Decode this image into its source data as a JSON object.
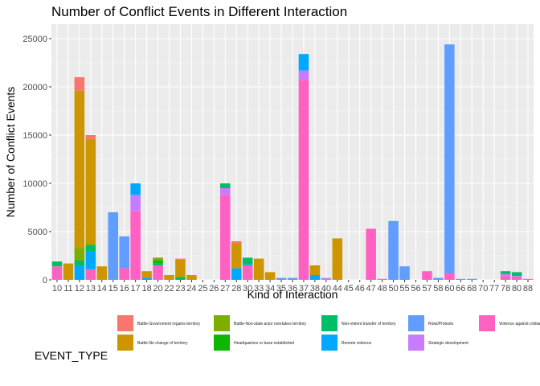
{
  "chart_data": {
    "type": "bar",
    "stacked": true,
    "title": "Number of Conflict Events in Different Interaction",
    "xlabel": "Kind of Interaction",
    "ylabel": "Number of Conflict Events",
    "ylim": [
      0,
      26500
    ],
    "yticks": [
      0,
      5000,
      10000,
      15000,
      20000,
      25000
    ],
    "y_tick_labels": [
      "0",
      "5000",
      "10000",
      "15000",
      "20000",
      "25000"
    ],
    "grid": true,
    "legend_title": "EVENT_TYPE",
    "legend_position": "bottom",
    "categories": [
      "10",
      "11",
      "12",
      "13",
      "14",
      "15",
      "16",
      "17",
      "18",
      "20",
      "22",
      "23",
      "24",
      "25",
      "26",
      "27",
      "28",
      "30",
      "33",
      "34",
      "35",
      "36",
      "37",
      "38",
      "40",
      "44",
      "45",
      "46",
      "47",
      "48",
      "50",
      "55",
      "56",
      "57",
      "58",
      "60",
      "66",
      "68",
      "70",
      "77",
      "78",
      "80",
      "88"
    ],
    "series": [
      {
        "name": "Battle-Government regains territory",
        "color": "#F8766D",
        "values": [
          0,
          0,
          1400,
          400,
          0,
          0,
          0,
          0,
          0,
          0,
          0,
          100,
          0,
          0,
          0,
          0,
          200,
          0,
          0,
          0,
          0,
          0,
          0,
          0,
          0,
          0,
          0,
          0,
          0,
          0,
          0,
          0,
          0,
          0,
          0,
          0,
          0,
          0,
          0,
          0,
          0,
          0,
          0
        ]
      },
      {
        "name": "Battle-No change of territory",
        "color": "#CD9600",
        "values": [
          0,
          1700,
          16300,
          10800,
          1400,
          0,
          0,
          0,
          700,
          0,
          500,
          1800,
          500,
          0,
          0,
          0,
          2600,
          0,
          2200,
          800,
          0,
          0,
          0,
          1000,
          0,
          4300,
          0,
          0,
          0,
          0,
          0,
          0,
          0,
          0,
          0,
          0,
          0,
          0,
          0,
          0,
          0,
          0,
          0
        ]
      },
      {
        "name": "Battle-Non-state actor overtakes territory",
        "color": "#7CAE00",
        "values": [
          0,
          0,
          1300,
          200,
          0,
          0,
          0,
          0,
          0,
          300,
          0,
          0,
          0,
          0,
          0,
          0,
          0,
          0,
          0,
          0,
          0,
          0,
          0,
          0,
          0,
          0,
          0,
          0,
          0,
          0,
          0,
          0,
          0,
          0,
          0,
          0,
          0,
          0,
          0,
          0,
          0,
          0,
          0
        ]
      },
      {
        "name": "Headquarters or base established",
        "color": "#0CB702",
        "values": [
          0,
          0,
          0,
          0,
          0,
          0,
          0,
          0,
          0,
          300,
          0,
          0,
          0,
          0,
          0,
          0,
          0,
          0,
          0,
          0,
          0,
          0,
          0,
          0,
          0,
          0,
          0,
          0,
          0,
          0,
          0,
          0,
          0,
          0,
          0,
          0,
          0,
          0,
          0,
          0,
          0,
          0,
          0
        ]
      },
      {
        "name": "Non-violent transfer of territory",
        "color": "#00BE67",
        "values": [
          500,
          0,
          500,
          600,
          0,
          0,
          0,
          0,
          0,
          200,
          0,
          300,
          0,
          0,
          0,
          500,
          0,
          700,
          0,
          0,
          0,
          0,
          0,
          0,
          0,
          0,
          0,
          0,
          0,
          0,
          0,
          0,
          0,
          0,
          0,
          0,
          0,
          0,
          0,
          0,
          300,
          400,
          0
        ]
      },
      {
        "name": "Remote violence",
        "color": "#00A9FF",
        "values": [
          0,
          0,
          1500,
          1900,
          0,
          0,
          0,
          1200,
          200,
          0,
          0,
          0,
          0,
          0,
          0,
          0,
          1200,
          100,
          0,
          0,
          0,
          0,
          1700,
          500,
          0,
          0,
          0,
          0,
          0,
          0,
          0,
          0,
          0,
          0,
          0,
          0,
          0,
          0,
          0,
          0,
          0,
          0,
          0
        ]
      },
      {
        "name": "Riots/Protests",
        "color": "#619CFF",
        "values": [
          0,
          0,
          0,
          0,
          0,
          7000,
          3300,
          0,
          0,
          0,
          0,
          0,
          0,
          0,
          0,
          0,
          0,
          0,
          0,
          0,
          200,
          200,
          0,
          0,
          0,
          0,
          0,
          0,
          0,
          0,
          6100,
          1400,
          0,
          0,
          200,
          23700,
          100,
          100,
          0,
          0,
          0,
          0,
          0
        ]
      },
      {
        "name": "Strategic development",
        "color": "#C77CFF",
        "values": [
          0,
          0,
          0,
          0,
          0,
          0,
          0,
          1700,
          0,
          0,
          0,
          0,
          0,
          0,
          0,
          700,
          0,
          0,
          0,
          0,
          0,
          0,
          1000,
          0,
          200,
          0,
          0,
          0,
          0,
          0,
          0,
          0,
          0,
          0,
          0,
          0,
          0,
          0,
          0,
          0,
          200,
          100,
          0
        ]
      },
      {
        "name": "Violence against civilians",
        "color": "#FF61C3",
        "values": [
          1400,
          0,
          0,
          1100,
          0,
          0,
          1200,
          7100,
          0,
          1500,
          0,
          0,
          0,
          0,
          0,
          8800,
          0,
          1500,
          0,
          0,
          0,
          0,
          20700,
          0,
          0,
          0,
          0,
          0,
          5300,
          100,
          0,
          0,
          0,
          900,
          0,
          700,
          0,
          0,
          0,
          0,
          400,
          300,
          100
        ]
      }
    ]
  }
}
